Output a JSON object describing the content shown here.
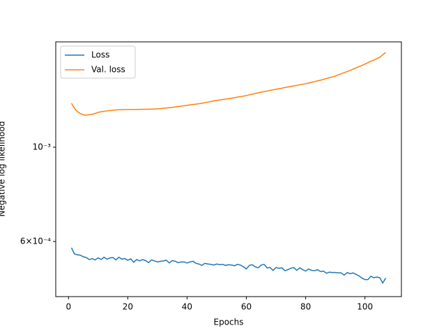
{
  "chart_data": {
    "type": "line",
    "xlabel": "Epochs",
    "ylabel": "Negative log likelihood",
    "x": [
      1,
      2,
      3,
      4,
      5,
      6,
      7,
      8,
      9,
      10,
      11,
      12,
      13,
      14,
      15,
      16,
      17,
      18,
      19,
      20,
      21,
      22,
      23,
      24,
      25,
      26,
      27,
      28,
      29,
      30,
      31,
      32,
      33,
      34,
      35,
      36,
      37,
      38,
      39,
      40,
      41,
      42,
      43,
      44,
      45,
      46,
      47,
      48,
      49,
      50,
      51,
      52,
      53,
      54,
      55,
      56,
      57,
      58,
      59,
      60,
      61,
      62,
      63,
      64,
      65,
      66,
      67,
      68,
      69,
      70,
      71,
      72,
      73,
      74,
      75,
      76,
      77,
      78,
      79,
      80,
      81,
      82,
      83,
      84,
      85,
      86,
      87,
      88,
      89,
      90,
      91,
      92,
      93,
      94,
      95,
      96,
      97,
      98,
      99,
      100,
      101,
      102,
      103,
      104,
      105,
      106,
      107
    ],
    "series": [
      {
        "name": "Loss",
        "color": "#1f77b4",
        "values": [
          0.00058,
          0.000561,
          0.000558,
          0.000557,
          0.000552,
          0.00055,
          0.000544,
          0.000547,
          0.000543,
          0.000549,
          0.000544,
          0.000551,
          0.000545,
          0.000549,
          0.00055,
          0.000543,
          0.000551,
          0.000545,
          0.000547,
          0.000542,
          0.000546,
          0.000536,
          0.000544,
          0.00054,
          0.000544,
          0.000541,
          0.000535,
          0.000543,
          0.00054,
          0.000537,
          0.000539,
          0.00054,
          0.000542,
          0.000534,
          0.000541,
          0.000539,
          0.000535,
          0.000537,
          0.000537,
          0.000534,
          0.000537,
          0.000539,
          0.000533,
          0.000531,
          0.000527,
          0.000533,
          0.000531,
          0.00053,
          0.000528,
          0.000531,
          0.000529,
          0.00053,
          0.000527,
          0.000529,
          0.000528,
          0.000526,
          0.00053,
          0.000528,
          0.000523,
          0.000517,
          0.000527,
          0.000529,
          0.000523,
          0.00052,
          0.000528,
          0.00053,
          0.00052,
          0.000521,
          0.000513,
          0.000521,
          0.000519,
          0.00052,
          0.000512,
          0.000515,
          0.000519,
          0.000521,
          0.000513,
          0.00052,
          0.000515,
          0.000511,
          0.000517,
          0.000513,
          0.000512,
          0.000515,
          0.00051,
          0.000511,
          0.000505,
          0.000508,
          0.000507,
          0.000507,
          0.000506,
          0.000506,
          0.0005,
          0.000507,
          0.000504,
          0.000506,
          0.000502,
          0.000498,
          0.000492,
          0.000488,
          0.000488,
          0.000497,
          0.000493,
          0.000495,
          0.000493,
          0.000479,
          0.000492
        ]
      },
      {
        "name": "Val. loss",
        "color": "#ff7f0e",
        "values": [
          0.001269,
          0.001235,
          0.001213,
          0.0012,
          0.001192,
          0.00119,
          0.001192,
          0.001196,
          0.001201,
          0.001208,
          0.001212,
          0.001215,
          0.001218,
          0.00122,
          0.001222,
          0.001224,
          0.001225,
          0.001226,
          0.001226,
          0.001227,
          0.001227,
          0.001227,
          0.001227,
          0.001228,
          0.001228,
          0.001229,
          0.001229,
          0.00123,
          0.00123,
          0.001231,
          0.001233,
          0.001235,
          0.001237,
          0.001239,
          0.001241,
          0.001244,
          0.001247,
          0.001249,
          0.001252,
          0.001255,
          0.001258,
          0.001261,
          0.001263,
          0.001266,
          0.001269,
          0.001273,
          0.001277,
          0.001281,
          0.001285,
          0.001289,
          0.001292,
          0.001295,
          0.001298,
          0.001301,
          0.001304,
          0.001308,
          0.001312,
          0.001315,
          0.001319,
          0.001323,
          0.001328,
          0.001333,
          0.001338,
          0.001343,
          0.001348,
          0.001352,
          0.001356,
          0.001361,
          0.001365,
          0.001369,
          0.001373,
          0.001377,
          0.001382,
          0.001386,
          0.00139,
          0.001394,
          0.001398,
          0.001403,
          0.001407,
          0.001411,
          0.001416,
          0.001422,
          0.001427,
          0.001433,
          0.001438,
          0.001445,
          0.001451,
          0.001458,
          0.001464,
          0.001471,
          0.00148,
          0.001489,
          0.001498,
          0.001507,
          0.001516,
          0.001527,
          0.001537,
          0.001548,
          0.001558,
          0.001569,
          0.001581,
          0.001593,
          0.001604,
          0.001616,
          0.001628,
          0.00165,
          0.001672
        ]
      }
    ],
    "xlim": [
      -4.3,
      112.3
    ],
    "xticks": [
      0,
      20,
      40,
      60,
      80,
      100
    ],
    "ylim": [
      0.000445,
      0.00177
    ],
    "ylog": true,
    "yticks": [
      {
        "value": 0.001,
        "label": "10⁻³"
      },
      {
        "value": 0.0006,
        "label": "6×10⁻⁴"
      }
    ],
    "legend": "upper left",
    "grid": false
  }
}
